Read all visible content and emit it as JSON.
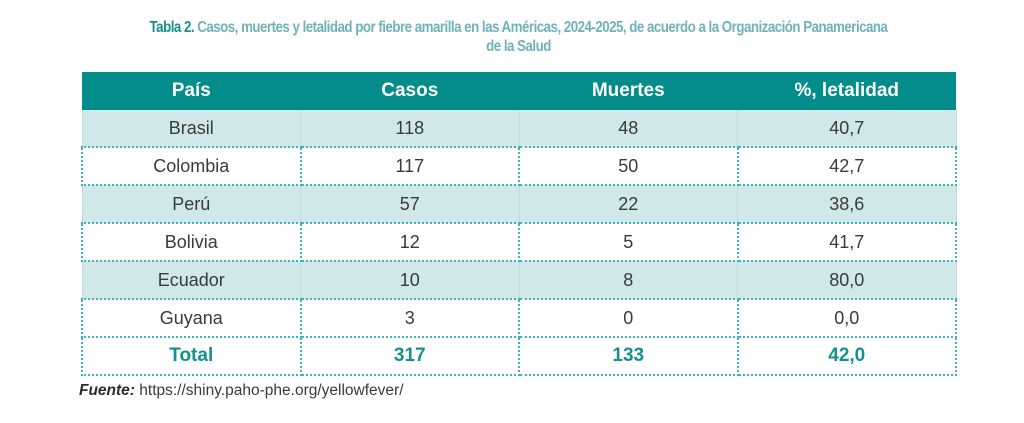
{
  "title": {
    "lead": "Tabla 2.",
    "text": " Casos, muertes y letalidad por fiebre amarilla en las Américas,  2024-2025, de acuerdo a la Organización Panamericana de la Salud"
  },
  "table": {
    "headers": [
      "País",
      "Casos",
      "Muertes",
      "%, letalidad"
    ],
    "rows": [
      [
        "Brasil",
        "118",
        "48",
        "40,7"
      ],
      [
        "Colombia",
        "117",
        "50",
        "42,7"
      ],
      [
        "Perú",
        "57",
        "22",
        "38,6"
      ],
      [
        "Bolivia",
        "12",
        "5",
        "41,7"
      ],
      [
        "Ecuador",
        "10",
        "8",
        "80,0"
      ],
      [
        "Guyana",
        "3",
        "0",
        "0,0"
      ]
    ],
    "total": [
      "Total",
      "317",
      "133",
      "42,0"
    ]
  },
  "source": {
    "label": "Fuente:",
    "url": " https://shiny.paho-phe.org/yellowfever/"
  },
  "colors": {
    "header_bg": "#028c8a",
    "shade_row": "#d0e8e8",
    "accent": "#14908f"
  }
}
